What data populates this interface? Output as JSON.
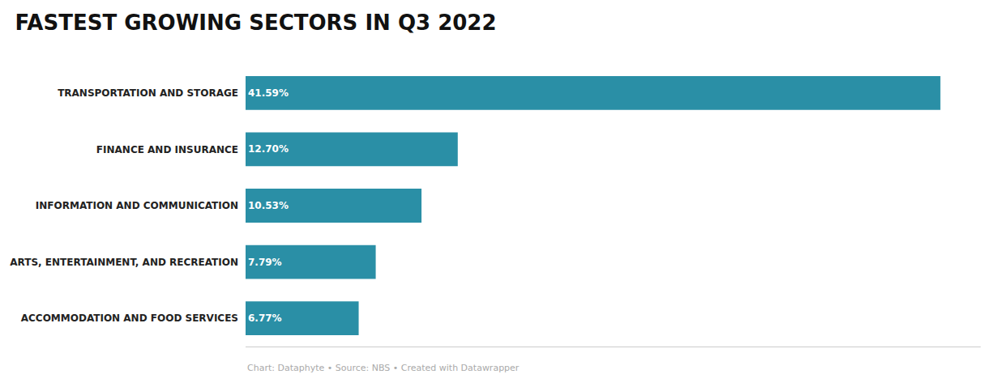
{
  "chart_data": {
    "type": "bar",
    "orientation": "horizontal",
    "title": "FASTEST GROWING SECTORS IN Q3 2022",
    "caption": "Chart: Dataphyte • Source: NBS • Created with Datawrapper",
    "categories": [
      "TRANSPORTATION AND STORAGE",
      "FINANCE AND INSURANCE",
      "INFORMATION AND COMMUNICATION",
      "ARTS, ENTERTAINMENT, AND RECREATION",
      "ACCOMMODATION AND FOOD SERVICES"
    ],
    "values": [
      41.59,
      12.7,
      10.53,
      7.79,
      6.77
    ],
    "value_labels": [
      "41.59%",
      "12.70%",
      "10.53%",
      "7.79%",
      "6.77%"
    ],
    "data_labels": true,
    "color": "#2a8fa6",
    "xlim": [
      0,
      44
    ],
    "tick_labels": "y",
    "grid": false
  }
}
